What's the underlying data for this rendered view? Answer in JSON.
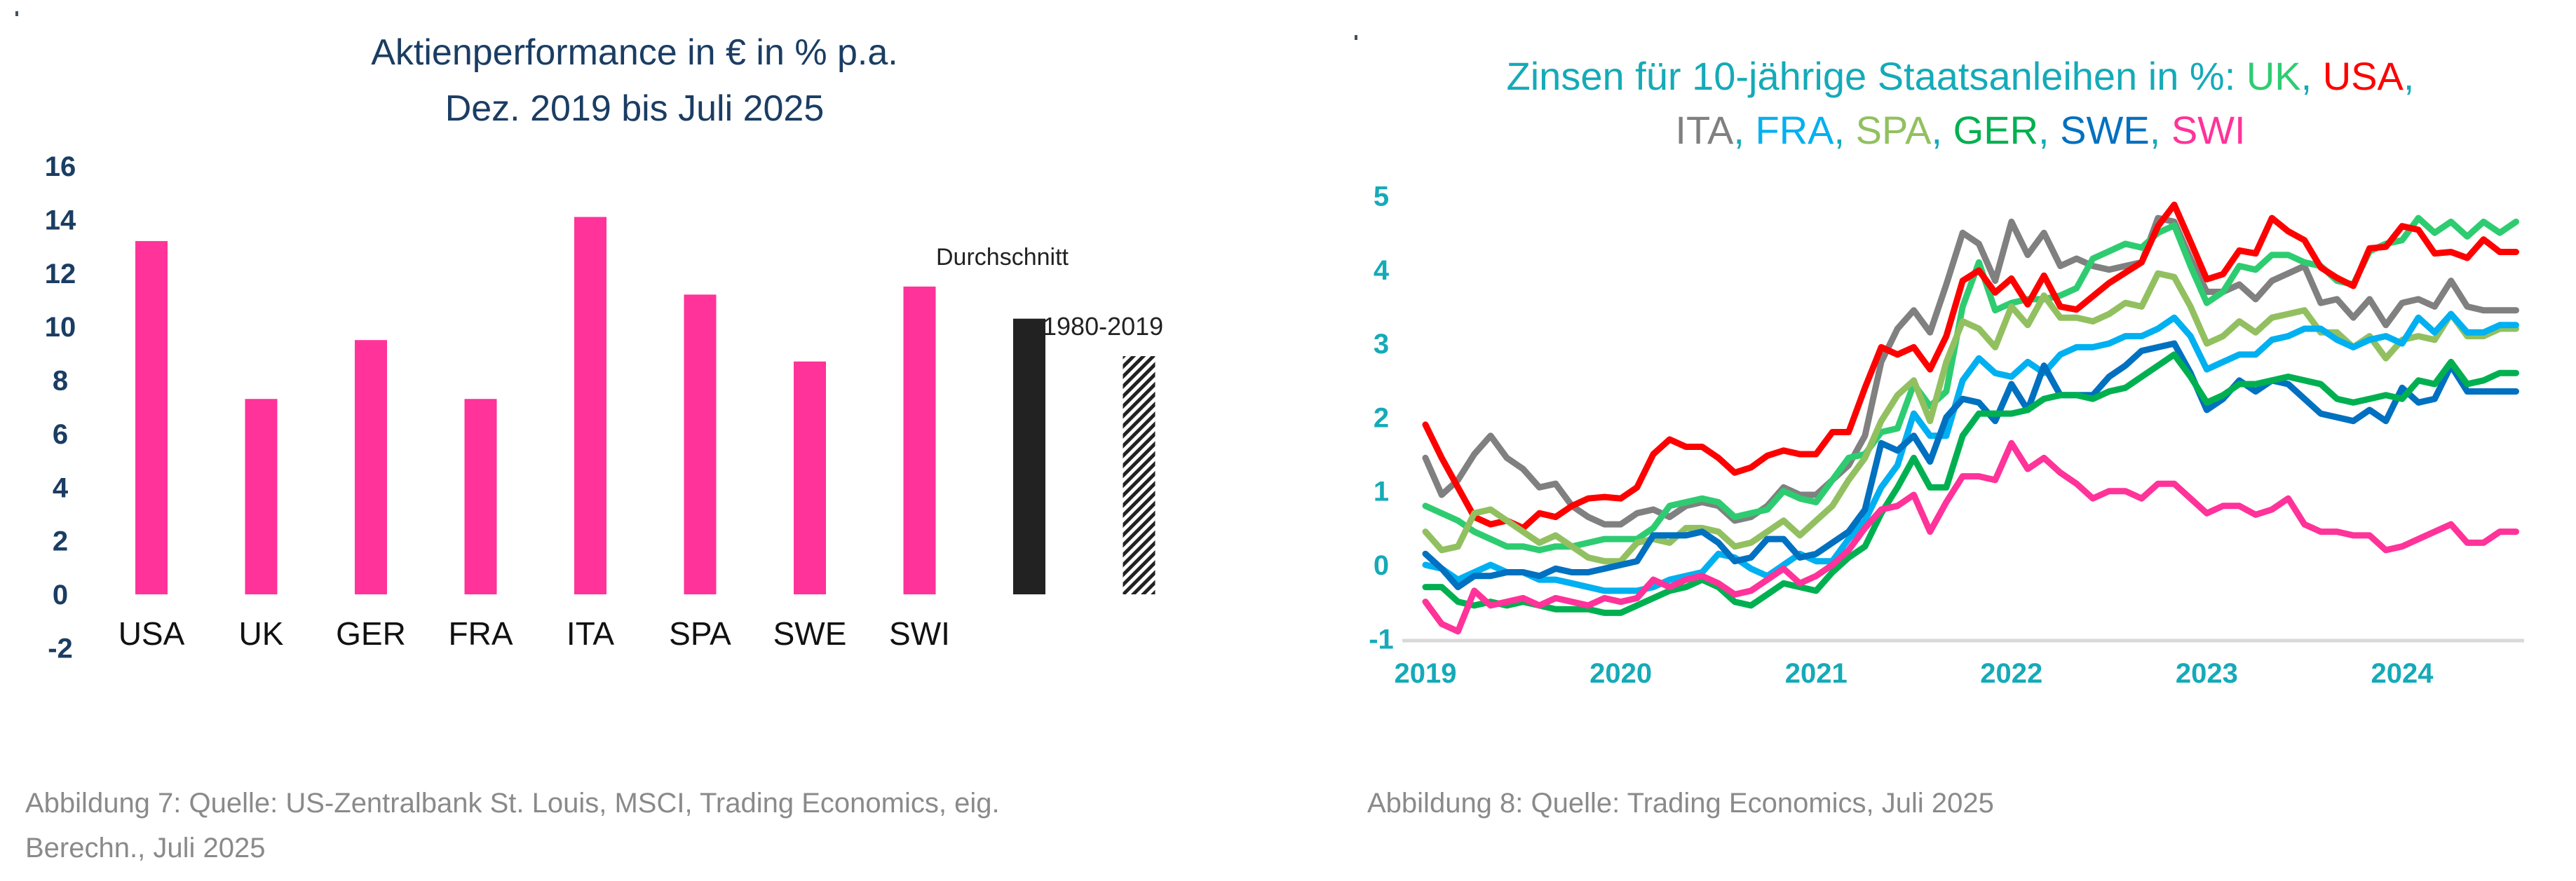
{
  "chart_data": [
    {
      "type": "bar",
      "title": "Aktienperformance in € in % p.a.",
      "subtitle": "Dez. 2019 bis Juli 2025",
      "xlabel": "",
      "ylabel": "",
      "ylim": [
        -2,
        16
      ],
      "yticks": [
        -2,
        0,
        2,
        4,
        6,
        8,
        10,
        12,
        14,
        16
      ],
      "grid": false,
      "categories": [
        "USA",
        "UK",
        "GER",
        "FRA",
        "ITA",
        "SPA",
        "SWE",
        "SWI",
        "",
        ""
      ],
      "values": [
        13.2,
        7.3,
        9.5,
        7.3,
        14.1,
        11.2,
        8.7,
        11.5,
        10.3,
        8.9
      ],
      "bar_styles": [
        "pink",
        "pink",
        "pink",
        "pink",
        "pink",
        "pink",
        "pink",
        "pink",
        "solid-black",
        "hatched"
      ],
      "annotations": [
        "Durchschnitt",
        "1980-2019"
      ],
      "colors": {
        "bar": "#ff3399",
        "average": "#222222",
        "axis_text": "#1b3d63",
        "title": "#1b3d63",
        "category_text": "#111111"
      }
    },
    {
      "type": "line",
      "title_parts": [
        {
          "text": "Zinsen für 10-jährige Staatsanleihen in %: ",
          "color": "#15aab8"
        },
        {
          "text": "UK",
          "color": "#2ecc71"
        },
        {
          "text": ", ",
          "color": "#15aab8"
        },
        {
          "text": "USA",
          "color": "#ff0000"
        },
        {
          "text": ",",
          "color": "#15aab8"
        }
      ],
      "title_parts_line2": [
        {
          "text": "ITA",
          "color": "#808080"
        },
        {
          "text": ", ",
          "color": "#15aab8"
        },
        {
          "text": "FRA",
          "color": "#00b0f0"
        },
        {
          "text": ", ",
          "color": "#15aab8"
        },
        {
          "text": "SPA",
          "color": "#92c060"
        },
        {
          "text": ", ",
          "color": "#15aab8"
        },
        {
          "text": "GER",
          "color": "#00b050"
        },
        {
          "text": ", ",
          "color": "#15aab8"
        },
        {
          "text": "SWE",
          "color": "#0070c0"
        },
        {
          "text": ", ",
          "color": "#15aab8"
        },
        {
          "text": "SWI",
          "color": "#ff3399"
        }
      ],
      "xlabel": "",
      "ylabel": "",
      "ylim": [
        -1,
        5
      ],
      "yticks": [
        -1,
        0,
        1,
        2,
        3,
        4,
        5
      ],
      "x_tick_labels": [
        "2019",
        "2020",
        "2021",
        "2022",
        "2023",
        "2024"
      ],
      "x_start_year": 2019,
      "x_step": "monthly",
      "grid": false,
      "axis_color": "#15aab8",
      "series": [
        {
          "name": "ITA",
          "color": "#808080",
          "values": [
            1.45,
            0.95,
            1.15,
            1.5,
            1.75,
            1.45,
            1.3,
            1.05,
            1.1,
            0.8,
            0.65,
            0.55,
            0.55,
            0.7,
            0.75,
            0.65,
            0.8,
            0.85,
            0.8,
            0.6,
            0.65,
            0.8,
            1.05,
            0.95,
            0.95,
            1.15,
            1.35,
            1.75,
            2.75,
            3.2,
            3.45,
            3.15,
            3.8,
            4.5,
            4.35,
            3.85,
            4.65,
            4.2,
            4.5,
            4.05,
            4.15,
            4.05,
            4.0,
            4.05,
            4.1,
            4.7,
            4.65,
            4.15,
            3.7,
            3.7,
            3.8,
            3.6,
            3.85,
            3.95,
            4.05,
            3.55,
            3.6,
            3.35,
            3.6,
            3.25,
            3.55,
            3.6,
            3.5,
            3.85,
            3.5,
            3.45,
            3.45,
            3.45
          ]
        },
        {
          "name": "UK",
          "color": "#2ecc71",
          "values": [
            0.8,
            0.7,
            0.6,
            0.45,
            0.35,
            0.25,
            0.25,
            0.2,
            0.25,
            0.25,
            0.3,
            0.35,
            0.35,
            0.35,
            0.5,
            0.8,
            0.85,
            0.9,
            0.85,
            0.65,
            0.7,
            0.75,
            1.0,
            0.9,
            0.85,
            1.15,
            1.45,
            1.5,
            1.8,
            1.85,
            2.45,
            2.15,
            2.35,
            3.5,
            4.1,
            3.45,
            3.55,
            3.6,
            3.6,
            3.65,
            3.75,
            4.15,
            4.25,
            4.35,
            4.3,
            4.5,
            4.6,
            4.05,
            3.55,
            3.7,
            4.05,
            4.0,
            4.2,
            4.2,
            4.1,
            4.05,
            3.85,
            3.8,
            4.25,
            4.35,
            4.4,
            4.7,
            4.5,
            4.65,
            4.45,
            4.65,
            4.5,
            4.65
          ]
        },
        {
          "name": "USA",
          "color": "#ff0000",
          "values": [
            1.9,
            1.45,
            1.05,
            0.65,
            0.55,
            0.6,
            0.5,
            0.7,
            0.65,
            0.8,
            0.9,
            0.92,
            0.9,
            1.05,
            1.5,
            1.7,
            1.6,
            1.6,
            1.45,
            1.25,
            1.32,
            1.48,
            1.55,
            1.5,
            1.5,
            1.8,
            1.8,
            2.4,
            2.95,
            2.85,
            2.95,
            2.65,
            3.1,
            3.85,
            3.99,
            3.69,
            3.88,
            3.53,
            3.92,
            3.5,
            3.46,
            3.64,
            3.82,
            3.96,
            4.1,
            4.59,
            4.88,
            4.38,
            3.87,
            3.94,
            4.26,
            4.22,
            4.7,
            4.52,
            4.4,
            4.03,
            3.89,
            3.78,
            4.29,
            4.31,
            4.59,
            4.54,
            4.22,
            4.24,
            4.16,
            4.41,
            4.24,
            4.24
          ]
        },
        {
          "name": "SPA",
          "color": "#92c060",
          "values": [
            0.45,
            0.2,
            0.25,
            0.7,
            0.75,
            0.6,
            0.45,
            0.3,
            0.4,
            0.25,
            0.1,
            0.05,
            0.05,
            0.3,
            0.35,
            0.3,
            0.5,
            0.5,
            0.45,
            0.25,
            0.3,
            0.45,
            0.6,
            0.4,
            0.6,
            0.8,
            1.15,
            1.45,
            1.95,
            2.3,
            2.5,
            1.95,
            2.75,
            3.3,
            3.2,
            2.95,
            3.5,
            3.25,
            3.65,
            3.35,
            3.35,
            3.3,
            3.4,
            3.55,
            3.5,
            3.95,
            3.9,
            3.5,
            3.0,
            3.1,
            3.3,
            3.15,
            3.35,
            3.4,
            3.45,
            3.15,
            3.15,
            2.95,
            3.1,
            2.8,
            3.05,
            3.1,
            3.05,
            3.4,
            3.1,
            3.1,
            3.2,
            3.2
          ]
        },
        {
          "name": "FRA",
          "color": "#00b0f0",
          "values": [
            0.0,
            -0.05,
            -0.2,
            -0.1,
            0.0,
            -0.1,
            -0.1,
            -0.2,
            -0.2,
            -0.25,
            -0.3,
            -0.35,
            -0.35,
            -0.35,
            -0.3,
            -0.2,
            -0.15,
            -0.1,
            0.15,
            0.1,
            -0.05,
            -0.15,
            0.0,
            0.15,
            0.05,
            0.05,
            0.35,
            0.6,
            1.05,
            1.35,
            2.05,
            1.75,
            1.75,
            2.5,
            2.8,
            2.6,
            2.55,
            2.75,
            2.6,
            2.85,
            2.95,
            2.95,
            3.0,
            3.1,
            3.1,
            3.2,
            3.35,
            3.1,
            2.65,
            2.75,
            2.85,
            2.85,
            3.05,
            3.1,
            3.2,
            3.2,
            3.05,
            2.95,
            3.05,
            3.1,
            3.0,
            3.35,
            3.15,
            3.4,
            3.15,
            3.15,
            3.25,
            3.25
          ]
        },
        {
          "name": "SWE",
          "color": "#0070c0",
          "values": [
            0.15,
            -0.05,
            -0.3,
            -0.15,
            -0.15,
            -0.1,
            -0.1,
            -0.15,
            -0.05,
            -0.1,
            -0.1,
            -0.05,
            0.0,
            0.05,
            0.4,
            0.4,
            0.4,
            0.45,
            0.3,
            0.05,
            0.1,
            0.35,
            0.35,
            0.1,
            0.15,
            0.3,
            0.45,
            0.75,
            1.65,
            1.55,
            1.75,
            1.4,
            2.0,
            2.25,
            2.2,
            1.95,
            2.45,
            2.1,
            2.7,
            2.3,
            2.3,
            2.3,
            2.55,
            2.7,
            2.9,
            2.95,
            3.0,
            2.6,
            2.1,
            2.25,
            2.5,
            2.35,
            2.5,
            2.45,
            2.25,
            2.05,
            2.0,
            1.95,
            2.1,
            1.95,
            2.4,
            2.2,
            2.25,
            2.7,
            2.35,
            2.35,
            2.35,
            2.35
          ]
        },
        {
          "name": "GER",
          "color": "#00b050",
          "values": [
            -0.3,
            -0.3,
            -0.5,
            -0.55,
            -0.5,
            -0.55,
            -0.5,
            -0.55,
            -0.6,
            -0.6,
            -0.6,
            -0.65,
            -0.65,
            -0.55,
            -0.45,
            -0.35,
            -0.3,
            -0.2,
            -0.3,
            -0.5,
            -0.55,
            -0.4,
            -0.25,
            -0.3,
            -0.35,
            -0.1,
            0.1,
            0.25,
            0.7,
            1.05,
            1.45,
            1.05,
            1.05,
            1.75,
            2.05,
            2.05,
            2.05,
            2.1,
            2.25,
            2.3,
            2.3,
            2.25,
            2.35,
            2.4,
            2.55,
            2.7,
            2.85,
            2.55,
            2.2,
            2.3,
            2.45,
            2.45,
            2.5,
            2.55,
            2.5,
            2.45,
            2.25,
            2.2,
            2.25,
            2.3,
            2.25,
            2.5,
            2.45,
            2.75,
            2.45,
            2.5,
            2.6,
            2.6
          ]
        },
        {
          "name": "SWI",
          "color": "#ff3399",
          "values": [
            -0.5,
            -0.8,
            -0.9,
            -0.35,
            -0.55,
            -0.5,
            -0.45,
            -0.55,
            -0.45,
            -0.5,
            -0.55,
            -0.45,
            -0.5,
            -0.45,
            -0.2,
            -0.3,
            -0.2,
            -0.15,
            -0.25,
            -0.4,
            -0.35,
            -0.2,
            -0.05,
            -0.25,
            -0.15,
            0.0,
            0.2,
            0.5,
            0.75,
            0.8,
            0.95,
            0.45,
            0.85,
            1.2,
            1.2,
            1.15,
            1.65,
            1.3,
            1.45,
            1.25,
            1.1,
            0.9,
            1.0,
            1.0,
            0.9,
            1.1,
            1.1,
            0.9,
            0.7,
            0.8,
            0.8,
            0.68,
            0.75,
            0.9,
            0.55,
            0.45,
            0.45,
            0.4,
            0.4,
            0.2,
            0.25,
            0.35,
            0.45,
            0.55,
            0.3,
            0.3,
            0.45,
            0.45
          ]
        }
      ]
    }
  ],
  "captions": {
    "left_line1": "Abbildung 7: Quelle: US-Zentralbank St. Louis, MSCI, Trading Economics, eig.",
    "left_line2": "Berechn., Juli 2025",
    "right": "Abbildung 8: Quelle: Trading Economics, Juli 2025"
  }
}
